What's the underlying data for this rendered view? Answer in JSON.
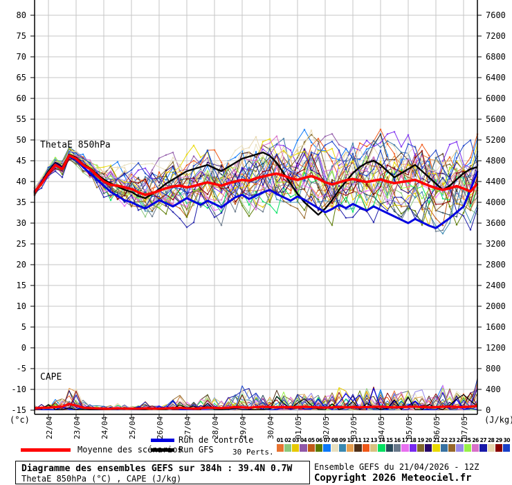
{
  "chart_data": {
    "type": "line",
    "title": "Diagramme des ensembles GEFS sur 384h : 39.4N 0.7W",
    "subtitle": "ThetaE 850hPa (°C) , CAPE (J/kg)",
    "panel_labels": {
      "thetae": "ThetaE 850hPa",
      "cape": "CAPE"
    },
    "left_axis": {
      "unit": "(°c)",
      "min": -15,
      "max": 80,
      "step": 5
    },
    "right_axis": {
      "unit": "(J/kg)",
      "min": 0,
      "max": 7600,
      "step": 400
    },
    "x_ticks": [
      "22/04",
      "23/04",
      "24/04",
      "25/04",
      "26/04",
      "27/04",
      "28/04",
      "29/04",
      "30/04",
      "01/05",
      "02/05",
      "03/05",
      "04/05",
      "05/05",
      "06/05",
      "07/05"
    ],
    "time_steps": 65,
    "hours_per_step": 6,
    "series": {
      "mean": [
        37.5,
        39.5,
        42.0,
        44.0,
        43.0,
        46.3,
        45.5,
        44.0,
        43.0,
        41.5,
        40.0,
        39.2,
        39.0,
        38.6,
        38.2,
        37.4,
        36.8,
        37.2,
        37.8,
        38.4,
        38.8,
        39.0,
        38.6,
        38.9,
        39.4,
        39.8,
        39.4,
        39.0,
        39.6,
        40.0,
        40.4,
        40.2,
        40.8,
        41.2,
        41.6,
        41.9,
        41.4,
        40.8,
        40.4,
        40.9,
        41.3,
        40.7,
        39.8,
        39.3,
        39.8,
        40.3,
        40.6,
        40.2,
        39.9,
        40.2,
        40.5,
        40.0,
        39.6,
        39.9,
        40.1,
        40.4,
        39.7,
        39.0,
        38.4,
        38.0,
        38.4,
        38.9,
        38.3,
        37.6,
        39.5
      ],
      "control": [
        37.5,
        39.5,
        42.0,
        44.2,
        43.2,
        46.0,
        45.2,
        43.5,
        42.0,
        40.5,
        39.0,
        37.5,
        36.5,
        35.5,
        35.0,
        34.2,
        33.5,
        34.5,
        35.5,
        34.8,
        34.0,
        35.0,
        36.0,
        35.2,
        34.4,
        35.4,
        34.6,
        33.8,
        35.0,
        36.2,
        36.8,
        35.8,
        36.6,
        37.4,
        38.0,
        37.0,
        36.2,
        35.4,
        36.4,
        35.6,
        34.6,
        33.6,
        32.6,
        33.4,
        34.4,
        33.6,
        34.6,
        33.8,
        33.0,
        34.0,
        33.2,
        32.4,
        31.6,
        30.8,
        30.0,
        31.0,
        30.2,
        29.4,
        28.8,
        30.0,
        31.2,
        32.6,
        34.0,
        38.0,
        42.5
      ],
      "gfs": [
        37.5,
        39.8,
        42.5,
        44.5,
        43.5,
        46.5,
        45.8,
        44.2,
        43.2,
        41.8,
        40.5,
        39.5,
        38.8,
        38.0,
        37.5,
        36.5,
        36.0,
        37.0,
        38.2,
        39.5,
        40.5,
        41.5,
        42.5,
        43.0,
        43.5,
        44.0,
        43.2,
        42.5,
        43.5,
        44.5,
        45.5,
        46.0,
        46.5,
        47.0,
        46.2,
        44.5,
        42.0,
        39.5,
        37.0,
        35.0,
        33.5,
        32.0,
        33.5,
        35.5,
        38.0,
        40.0,
        42.0,
        43.5,
        44.5,
        45.0,
        44.0,
        42.5,
        41.0,
        42.0,
        43.0,
        44.0,
        42.5,
        41.0,
        39.5,
        38.0,
        39.0,
        40.5,
        42.0,
        43.0,
        43.5
      ]
    },
    "spread": [
      0.8,
      1.0,
      1.1,
      1.2,
      1.3,
      1.2,
      1.4,
      1.8,
      2.2,
      2.6,
      3.0,
      3.2,
      3.4,
      3.6,
      3.8,
      4.0,
      4.2,
      4.4,
      4.6,
      4.8,
      5.0,
      5.1,
      5.2,
      5.3,
      5.4,
      5.5,
      5.6,
      5.6,
      5.7,
      5.7,
      5.8,
      5.8,
      5.9,
      5.9,
      6.0,
      6.0,
      6.1,
      6.1,
      6.2,
      6.2,
      6.3,
      6.3,
      6.4,
      6.4,
      6.5,
      6.5,
      6.5,
      6.5,
      6.5,
      6.6,
      6.6,
      6.6,
      6.7,
      6.7,
      6.7,
      6.8,
      6.8,
      6.8,
      6.9,
      6.9,
      7.0,
      7.0,
      7.0,
      7.0,
      7.0
    ],
    "cape": {
      "mean": [
        40,
        45,
        50,
        60,
        70,
        120,
        90,
        50,
        40,
        35,
        30,
        30,
        35,
        30,
        30,
        30,
        35,
        30,
        30,
        35,
        40,
        45,
        35,
        30,
        40,
        50,
        45,
        40,
        50,
        60,
        55,
        50,
        60,
        65,
        60,
        55,
        60,
        55,
        60,
        65,
        60,
        55,
        50,
        55,
        60,
        55,
        60,
        55,
        60,
        65,
        70,
        60,
        55,
        60,
        65,
        70,
        60,
        55,
        60,
        65,
        70,
        65,
        60,
        70,
        80
      ],
      "envelope": [
        80,
        100,
        120,
        200,
        300,
        520,
        380,
        180,
        100,
        80,
        70,
        80,
        120,
        90,
        70,
        80,
        150,
        100,
        80,
        120,
        180,
        260,
        180,
        140,
        200,
        280,
        220,
        160,
        240,
        320,
        430,
        380,
        300,
        260,
        320,
        420,
        360,
        280,
        320,
        380,
        300,
        260,
        300,
        340,
        400,
        340,
        300,
        340,
        380,
        420,
        360,
        300,
        340,
        400,
        360,
        320,
        360,
        300,
        340,
        480,
        400,
        340,
        300,
        380,
        600
      ]
    },
    "members": [
      {
        "num": "01",
        "color": "#e87330"
      },
      {
        "num": "02",
        "color": "#8cc87c"
      },
      {
        "num": "03",
        "color": "#e6c800"
      },
      {
        "num": "04",
        "color": "#9058a8"
      },
      {
        "num": "05",
        "color": "#c05a18"
      },
      {
        "num": "06",
        "color": "#5a7a00"
      },
      {
        "num": "07",
        "color": "#0a78f8"
      },
      {
        "num": "08",
        "color": "#e8e0c0"
      },
      {
        "num": "09",
        "color": "#3a88b0"
      },
      {
        "num": "10",
        "color": "#e8a050"
      },
      {
        "num": "11",
        "color": "#503018"
      },
      {
        "num": "12",
        "color": "#f05818"
      },
      {
        "num": "13",
        "color": "#d8c080"
      },
      {
        "num": "14",
        "color": "#00e060"
      },
      {
        "num": "15",
        "color": "#28485a"
      },
      {
        "num": "16",
        "color": "#68788a"
      },
      {
        "num": "17",
        "color": "#e870f0"
      },
      {
        "num": "18",
        "color": "#7828f0"
      },
      {
        "num": "19",
        "color": "#80682a"
      },
      {
        "num": "20",
        "color": "#28086a"
      },
      {
        "num": "21",
        "color": "#e8d800"
      },
      {
        "num": "22",
        "color": "#3872a2"
      },
      {
        "num": "23",
        "color": "#96682a"
      },
      {
        "num": "24",
        "color": "#9888e8"
      },
      {
        "num": "25",
        "color": "#98f048"
      },
      {
        "num": "26",
        "color": "#d870c8"
      },
      {
        "num": "27",
        "color": "#1818a8"
      },
      {
        "num": "28",
        "color": "#e8d8b0"
      },
      {
        "num": "29",
        "color": "#880000"
      },
      {
        "num": "30",
        "color": "#1840c8"
      }
    ],
    "colors": {
      "mean": "#ff0000",
      "control": "#0000e0",
      "gfs": "#000000",
      "grid": "#c6c6c6",
      "axis": "#000000"
    },
    "legend_position": "bottom"
  },
  "legend": {
    "mean_label": "Moyenne des scénarios",
    "control_label": "Run de contrôle",
    "gfs_label": "Run GFS",
    "perts_label": "30 Perts."
  },
  "footer": {
    "title": "Diagramme des ensembles GEFS sur 384h : 39.4N 0.7W",
    "subtitle": "ThetaE 850hPa (°C) , CAPE (J/kg)",
    "run_info": "Ensemble GEFS du 21/04/2026 - 12Z",
    "copyright": "Copyright 2026 Meteociel.fr"
  }
}
